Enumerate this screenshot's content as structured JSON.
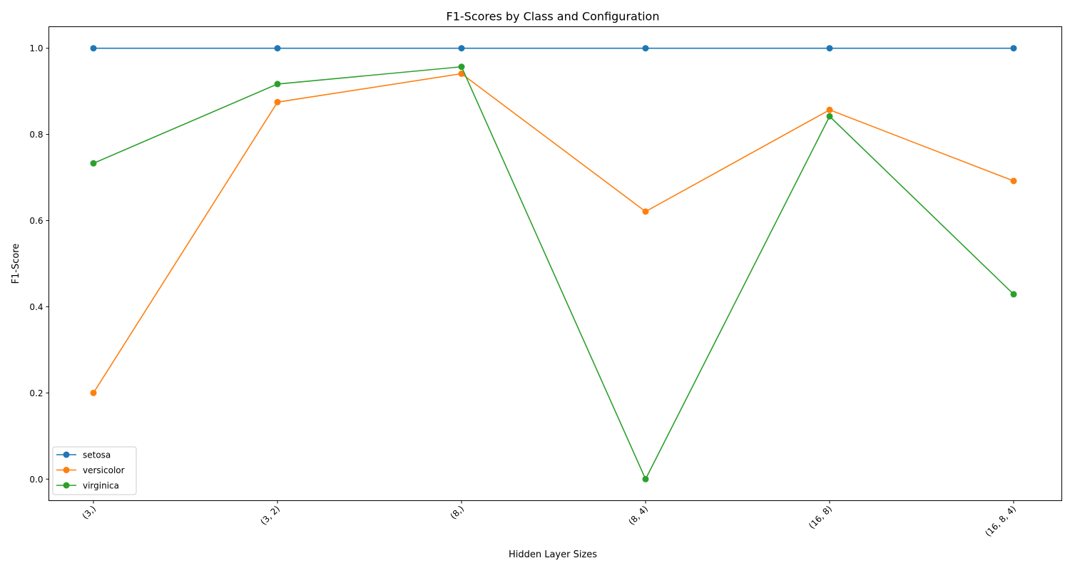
{
  "chart_data": {
    "type": "line",
    "title": "F1-Scores by Class and Configuration",
    "xlabel": "Hidden Layer Sizes",
    "ylabel": "F1-Score",
    "categories": [
      "(3,)",
      "(3, 2)",
      "(8,)",
      "(8, 4)",
      "(16, 8)",
      "(16, 8, 4)"
    ],
    "ylim": [
      -0.05,
      1.05
    ],
    "yticks": [
      0.0,
      0.2,
      0.4,
      0.6,
      0.8,
      1.0
    ],
    "ytick_labels": [
      "0.0",
      "0.2",
      "0.4",
      "0.6",
      "0.8",
      "1.0"
    ],
    "grid": false,
    "legend_position": "lower-left",
    "series": [
      {
        "name": "setosa",
        "color": "#1f77b4",
        "values": [
          1.0,
          1.0,
          1.0,
          1.0,
          1.0,
          1.0
        ]
      },
      {
        "name": "versicolor",
        "color": "#ff7f0e",
        "values": [
          0.2,
          0.875,
          0.941,
          0.621,
          0.857,
          0.692
        ]
      },
      {
        "name": "virginica",
        "color": "#2ca02c",
        "values": [
          0.733,
          0.917,
          0.957,
          0.0,
          0.842,
          0.429
        ]
      }
    ]
  }
}
